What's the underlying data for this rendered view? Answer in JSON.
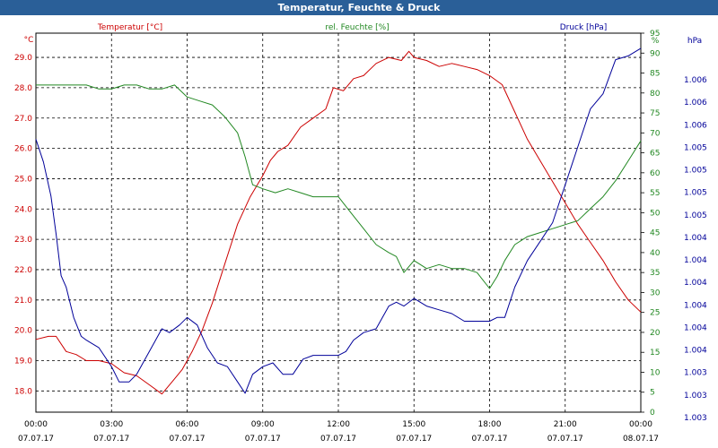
{
  "window": {
    "title": "Temperatur, Feuchte & Druck"
  },
  "chart_data": {
    "type": "line",
    "title": "Temperatur, Feuchte & Druck",
    "grid": true,
    "x": {
      "labels_time": [
        "00:00",
        "03:00",
        "06:00",
        "09:00",
        "12:00",
        "15:00",
        "18:00",
        "21:00",
        "00:00"
      ],
      "labels_date": [
        "07.07.17",
        "07.07.17",
        "07.07.17",
        "07.07.17",
        "07.07.17",
        "07.07.17",
        "07.07.17",
        "07.07.17",
        "08.07.17"
      ],
      "range_hours": [
        0,
        24
      ]
    },
    "axes": {
      "temperature": {
        "unit": "°C",
        "color": "#cc0000",
        "range": [
          17.3,
          29.8
        ],
        "ticks": [
          "18.0",
          "19.0",
          "20.0",
          "21.0",
          "22.0",
          "23.0",
          "24.0",
          "25.0",
          "26.0",
          "27.0",
          "28.0",
          "29.0"
        ]
      },
      "humidity": {
        "unit": "%",
        "color": "#228822",
        "range": [
          0,
          95
        ],
        "ticks": [
          "0",
          "5",
          "10",
          "15",
          "20",
          "25",
          "30",
          "35",
          "40",
          "45",
          "50",
          "55",
          "60",
          "65",
          "70",
          "75",
          "80",
          "85",
          "90",
          "95"
        ]
      },
      "pressure": {
        "unit": "hPa",
        "color": "#000099",
        "ticks": [
          "1.003",
          "1.003",
          "1.003",
          "1.004",
          "1.004",
          "1.004",
          "1.004",
          "1.004",
          "1.004",
          "1.005",
          "1.005",
          "1.005",
          "1.005",
          "1.006",
          "1.006",
          "1.006"
        ]
      }
    },
    "series": [
      {
        "name": "Temperatur [°C]",
        "axis": "temperature",
        "color": "#cc0000",
        "points": [
          [
            0,
            19.7
          ],
          [
            0.5,
            19.8
          ],
          [
            0.8,
            19.8
          ],
          [
            1.2,
            19.3
          ],
          [
            1.6,
            19.2
          ],
          [
            2.0,
            19.0
          ],
          [
            2.5,
            19.0
          ],
          [
            3.0,
            18.9
          ],
          [
            3.5,
            18.6
          ],
          [
            4.0,
            18.5
          ],
          [
            4.5,
            18.2
          ],
          [
            5.0,
            17.9
          ],
          [
            5.4,
            18.3
          ],
          [
            5.8,
            18.7
          ],
          [
            6.2,
            19.3
          ],
          [
            6.6,
            20.0
          ],
          [
            7.0,
            20.9
          ],
          [
            7.5,
            22.2
          ],
          [
            8.0,
            23.5
          ],
          [
            8.5,
            24.4
          ],
          [
            9.0,
            25.1
          ],
          [
            9.3,
            25.6
          ],
          [
            9.6,
            25.9
          ],
          [
            10.0,
            26.1
          ],
          [
            10.5,
            26.7
          ],
          [
            11.0,
            27.0
          ],
          [
            11.5,
            27.3
          ],
          [
            11.8,
            28.0
          ],
          [
            12.2,
            27.9
          ],
          [
            12.6,
            28.3
          ],
          [
            13.0,
            28.4
          ],
          [
            13.5,
            28.8
          ],
          [
            14.0,
            29.0
          ],
          [
            14.5,
            28.9
          ],
          [
            14.8,
            29.2
          ],
          [
            15.0,
            29.0
          ],
          [
            15.5,
            28.9
          ],
          [
            16.0,
            28.7
          ],
          [
            16.5,
            28.8
          ],
          [
            17.0,
            28.7
          ],
          [
            17.5,
            28.6
          ],
          [
            18.0,
            28.4
          ],
          [
            18.5,
            28.1
          ],
          [
            19.0,
            27.2
          ],
          [
            19.5,
            26.3
          ],
          [
            20.0,
            25.6
          ],
          [
            20.5,
            24.9
          ],
          [
            21.0,
            24.2
          ],
          [
            21.5,
            23.5
          ],
          [
            22.0,
            22.9
          ],
          [
            22.5,
            22.3
          ],
          [
            23.0,
            21.6
          ],
          [
            23.5,
            21.0
          ],
          [
            24.0,
            20.6
          ]
        ]
      },
      {
        "name": "rel. Feuchte [%]",
        "axis": "humidity",
        "color": "#228822",
        "points": [
          [
            0,
            82
          ],
          [
            0.5,
            82
          ],
          [
            1.0,
            82
          ],
          [
            1.5,
            82
          ],
          [
            2.0,
            82
          ],
          [
            2.5,
            81
          ],
          [
            3.0,
            81
          ],
          [
            3.5,
            82
          ],
          [
            4.0,
            82
          ],
          [
            4.5,
            81
          ],
          [
            5.0,
            81
          ],
          [
            5.5,
            82
          ],
          [
            6.0,
            79
          ],
          [
            6.5,
            78
          ],
          [
            7.0,
            77
          ],
          [
            7.5,
            74
          ],
          [
            8.0,
            70
          ],
          [
            8.3,
            64
          ],
          [
            8.6,
            57
          ],
          [
            9.0,
            56
          ],
          [
            9.5,
            55
          ],
          [
            10.0,
            56
          ],
          [
            10.5,
            55
          ],
          [
            11.0,
            54
          ],
          [
            11.5,
            54
          ],
          [
            12.0,
            54
          ],
          [
            12.5,
            50
          ],
          [
            13.0,
            46
          ],
          [
            13.5,
            42
          ],
          [
            14.0,
            40
          ],
          [
            14.3,
            39
          ],
          [
            14.6,
            35
          ],
          [
            15.0,
            38
          ],
          [
            15.5,
            36
          ],
          [
            16.0,
            37
          ],
          [
            16.5,
            36
          ],
          [
            17.0,
            36
          ],
          [
            17.5,
            35
          ],
          [
            18.0,
            31
          ],
          [
            18.3,
            34
          ],
          [
            18.6,
            38
          ],
          [
            19.0,
            42
          ],
          [
            19.5,
            44
          ],
          [
            20.0,
            45
          ],
          [
            20.5,
            46
          ],
          [
            21.0,
            47
          ],
          [
            21.5,
            48
          ],
          [
            22.0,
            51
          ],
          [
            22.5,
            54
          ],
          [
            23.0,
            58
          ],
          [
            23.5,
            63
          ],
          [
            24.0,
            68
          ]
        ]
      },
      {
        "name": "Druck [hPa]",
        "axis": "pressure",
        "color": "#000099",
        "points": [
          [
            0,
            0.72
          ],
          [
            0.3,
            0.66
          ],
          [
            0.6,
            0.57
          ],
          [
            0.8,
            0.47
          ],
          [
            1.0,
            0.36
          ],
          [
            1.2,
            0.33
          ],
          [
            1.5,
            0.25
          ],
          [
            1.8,
            0.2
          ],
          [
            2.0,
            0.19
          ],
          [
            2.5,
            0.17
          ],
          [
            3.0,
            0.12
          ],
          [
            3.3,
            0.08
          ],
          [
            3.7,
            0.08
          ],
          [
            4.0,
            0.1
          ],
          [
            4.5,
            0.16
          ],
          [
            5.0,
            0.22
          ],
          [
            5.3,
            0.21
          ],
          [
            5.7,
            0.23
          ],
          [
            6.0,
            0.25
          ],
          [
            6.4,
            0.23
          ],
          [
            6.8,
            0.17
          ],
          [
            7.2,
            0.13
          ],
          [
            7.6,
            0.12
          ],
          [
            8.0,
            0.08
          ],
          [
            8.3,
            0.05
          ],
          [
            8.6,
            0.1
          ],
          [
            9.0,
            0.12
          ],
          [
            9.4,
            0.13
          ],
          [
            9.8,
            0.1
          ],
          [
            10.2,
            0.1
          ],
          [
            10.6,
            0.14
          ],
          [
            11.0,
            0.15
          ],
          [
            11.5,
            0.15
          ],
          [
            12.0,
            0.15
          ],
          [
            12.3,
            0.16
          ],
          [
            12.6,
            0.19
          ],
          [
            13.0,
            0.21
          ],
          [
            13.5,
            0.22
          ],
          [
            14.0,
            0.28
          ],
          [
            14.3,
            0.29
          ],
          [
            14.6,
            0.28
          ],
          [
            15.0,
            0.3
          ],
          [
            15.5,
            0.28
          ],
          [
            16.0,
            0.27
          ],
          [
            16.5,
            0.26
          ],
          [
            17.0,
            0.24
          ],
          [
            17.5,
            0.24
          ],
          [
            18.0,
            0.24
          ],
          [
            18.3,
            0.25
          ],
          [
            18.6,
            0.25
          ],
          [
            19.0,
            0.33
          ],
          [
            19.5,
            0.4
          ],
          [
            20.0,
            0.45
          ],
          [
            20.5,
            0.5
          ],
          [
            21.0,
            0.6
          ],
          [
            21.5,
            0.7
          ],
          [
            22.0,
            0.8
          ],
          [
            22.5,
            0.84
          ],
          [
            23.0,
            0.93
          ],
          [
            23.5,
            0.94
          ],
          [
            24.0,
            0.96
          ]
        ]
      }
    ]
  }
}
